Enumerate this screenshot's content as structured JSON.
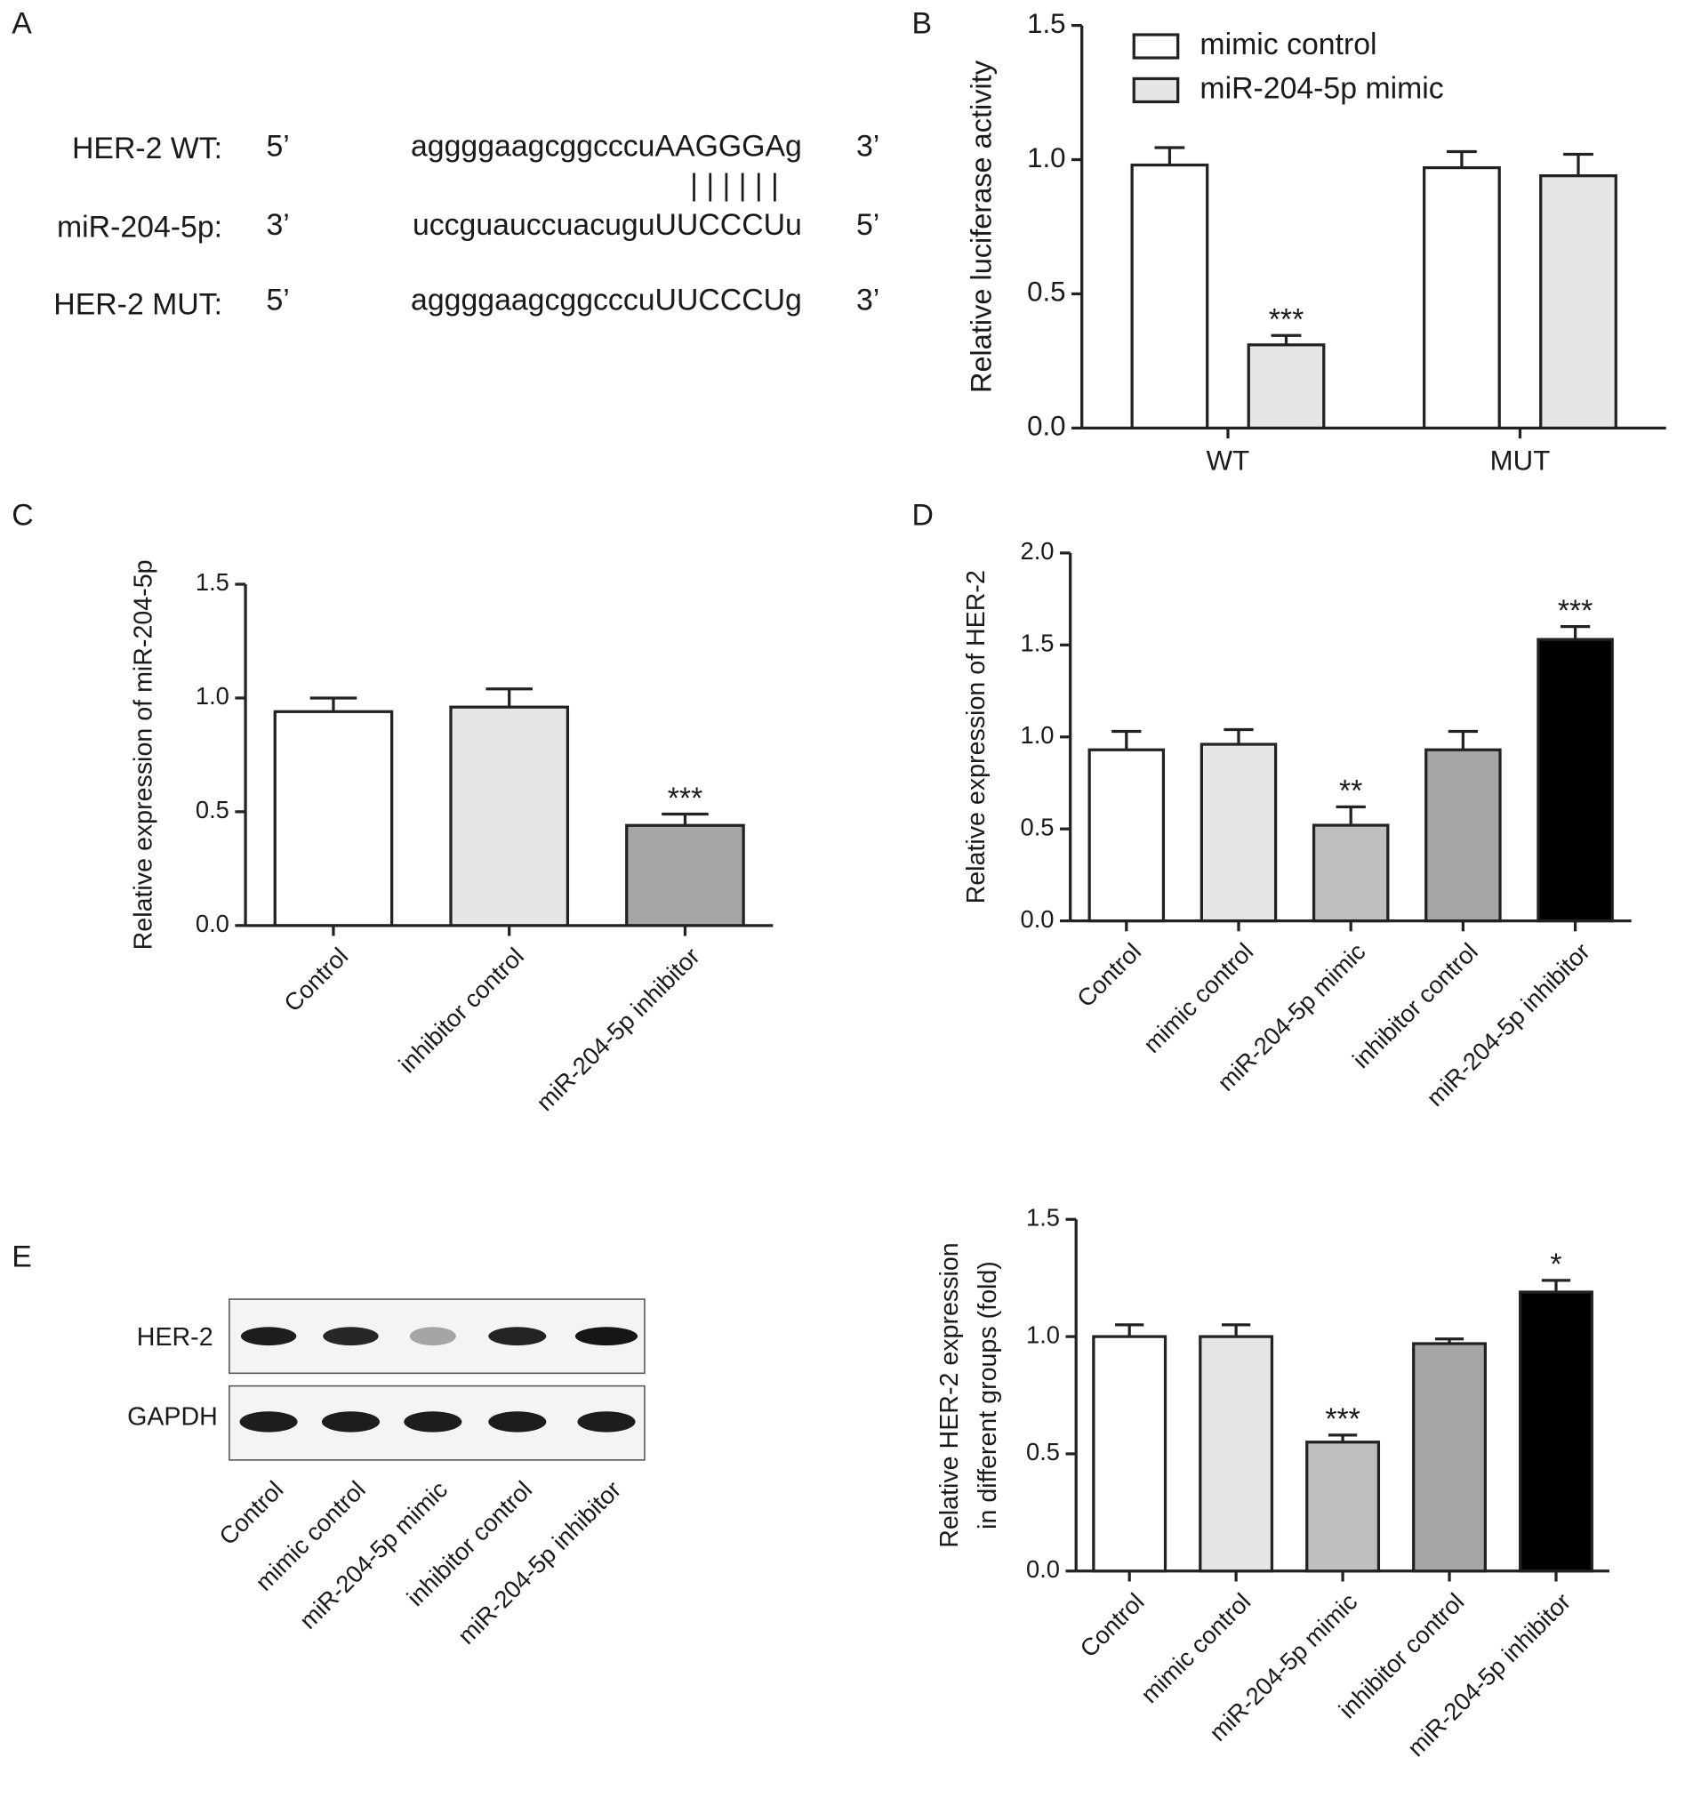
{
  "panels": [
    "A",
    "B",
    "C",
    "D",
    "E"
  ],
  "alignment": {
    "rows": [
      {
        "label": "HER-2 WT:",
        "end_left": "5’",
        "sequence": "aggggaagcggcccuAAGGGAg",
        "end_right": "3’"
      },
      {
        "label": "miR-204-5p:",
        "end_left": "3’",
        "sequence": "uccguauccuacuguUUCCCUu",
        "end_right": "5’"
      },
      {
        "label": "HER-2 MUT:",
        "end_left": "5’",
        "sequence": "aggggaagcggcccuUUCCCUg",
        "end_right": "3’"
      }
    ],
    "pairing": "| | | | | |"
  },
  "blot": {
    "rows": [
      "HER-2",
      "GAPDH"
    ],
    "lanes": [
      "Control",
      "mimic control",
      "miR-204-5p mimic",
      "inhibitor control",
      "miR-204-5p inhibitor"
    ]
  },
  "chart_data": [
    {
      "type": "bar",
      "ylabel": "Relative luciferase activity",
      "categories": [
        "WT",
        "MUT"
      ],
      "series": [
        {
          "name": "mimic control",
          "color": "#ffffff",
          "values": [
            0.98,
            0.97
          ],
          "errors": [
            0.065,
            0.06
          ]
        },
        {
          "name": "miR-204-5p mimic",
          "color": "#e6e6e6",
          "values": [
            0.31,
            0.94
          ],
          "errors": [
            0.035,
            0.08
          ]
        }
      ],
      "annotations": [
        {
          "text": "***",
          "category": "WT",
          "series": "miR-204-5p mimic"
        }
      ],
      "ylim": [
        0,
        1.5
      ],
      "yticks": [
        {
          "value": 0,
          "label": "0.0"
        },
        0.5,
        {
          "value": 1,
          "label": "1.0"
        },
        1.5
      ],
      "legend": "top"
    },
    {
      "type": "bar",
      "ylabel": "Relative expression of miR-204-5p",
      "categories": [
        "Control",
        "inhibitor control",
        "miR-204-5p inhibitor"
      ],
      "values": [
        0.94,
        0.96,
        0.44
      ],
      "errors": [
        0.06,
        0.08,
        0.05
      ],
      "colors": [
        "#ffffff",
        "#e6e6e6",
        "#a6a6a6"
      ],
      "annotations": [
        {
          "text": "***",
          "category": "miR-204-5p inhibitor"
        }
      ],
      "ylim": [
        0,
        1.5
      ],
      "yticks": [
        {
          "value": 0,
          "label": "0.0"
        },
        0.5,
        {
          "value": 1,
          "label": "1.0"
        },
        1.5
      ]
    },
    {
      "type": "bar",
      "ylabel": "Relative expression of HER-2",
      "categories": [
        "Control",
        "mimic control",
        "miR-204-5p mimic",
        "inhibitor control",
        "miR-204-5p inhibitor"
      ],
      "values": [
        0.93,
        0.96,
        0.52,
        0.93,
        1.53
      ],
      "errors": [
        0.1,
        0.08,
        0.1,
        0.1,
        0.07
      ],
      "colors": [
        "#ffffff",
        "#e6e6e6",
        "#bfbfbf",
        "#a6a6a6",
        "#000000"
      ],
      "annotations": [
        {
          "text": "**",
          "category": "miR-204-5p mimic"
        },
        {
          "text": "***",
          "category": "miR-204-5p inhibitor"
        }
      ],
      "ylim": [
        0,
        2
      ],
      "yticks": [
        {
          "value": 0,
          "label": "0.0"
        },
        0.5,
        {
          "value": 1,
          "label": "1.0"
        },
        1.5,
        {
          "value": 2,
          "label": "2.0"
        }
      ]
    },
    {
      "type": "bar",
      "ylabel": [
        "Relative HER-2 expression",
        "in different groups (fold)"
      ],
      "categories": [
        "Control",
        "mimic control",
        "miR-204-5p mimic",
        "inhibitor control",
        "miR-204-5p inhibitor"
      ],
      "values": [
        1.0,
        1.0,
        0.55,
        0.97,
        1.19
      ],
      "errors": [
        0.05,
        0.05,
        0.03,
        0.02,
        0.05
      ],
      "colors": [
        "#ffffff",
        "#e6e6e6",
        "#bfbfbf",
        "#a6a6a6",
        "#000000"
      ],
      "annotations": [
        {
          "text": "***",
          "category": "miR-204-5p mimic"
        },
        {
          "text": "*",
          "category": "miR-204-5p inhibitor"
        }
      ],
      "ylim": [
        0,
        1.5
      ],
      "yticks": [
        {
          "value": 0,
          "label": "0.0"
        },
        0.5,
        {
          "value": 1,
          "label": "1.0"
        },
        1.5
      ]
    }
  ]
}
